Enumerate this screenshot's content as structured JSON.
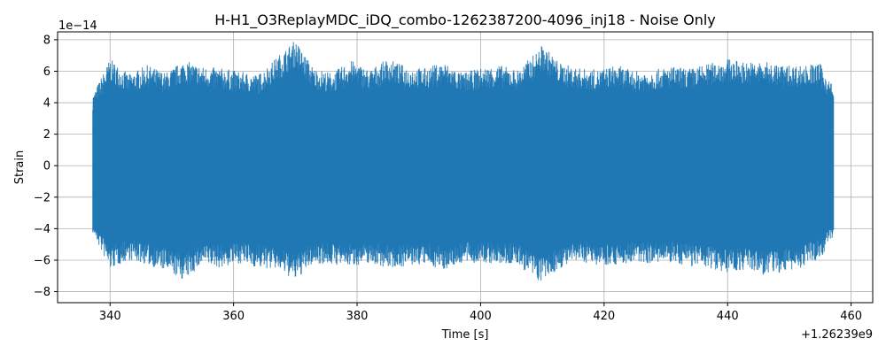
{
  "chart_data": {
    "type": "line",
    "title": "H-H1_O3ReplayMDC_iDQ_combo-1262387200-4096_inj18 - Noise Only",
    "xlabel": "Time [s]",
    "ylabel": "Strain",
    "x_offset_label": "+1.26239e9",
    "y_scale_label": "1e−14",
    "xlim": [
      331.5,
      463.5
    ],
    "ylim": [
      -8.7,
      8.5
    ],
    "x_ticks": [
      340,
      360,
      380,
      400,
      420,
      440,
      460
    ],
    "x_tick_labels": [
      "340",
      "360",
      "380",
      "400",
      "420",
      "440",
      "460"
    ],
    "y_ticks": [
      -8,
      -6,
      -4,
      -2,
      0,
      2,
      4,
      6,
      8
    ],
    "y_tick_labels": [
      "−8",
      "−6",
      "−4",
      "−2",
      "0",
      "2",
      "4",
      "6",
      "8"
    ],
    "grid": true,
    "series": [
      {
        "color": "#1f77b4",
        "x_range": [
          337.2,
          457.2
        ],
        "envelope_x": [
          337.2,
          340,
          343,
          346,
          349,
          352,
          355,
          358,
          361,
          364,
          367,
          370,
          373,
          376,
          379,
          382,
          385,
          388,
          391,
          394,
          397,
          400,
          403,
          406,
          409,
          410,
          413,
          416,
          419,
          422,
          425,
          428,
          431,
          434,
          437,
          440,
          443,
          446,
          449,
          452,
          455,
          457.2
        ],
        "envelope_upper": [
          4.5,
          6.8,
          5.8,
          6.4,
          5.9,
          6.7,
          6.3,
          6.2,
          6.0,
          5.8,
          6.9,
          8.0,
          6.2,
          5.9,
          6.7,
          6.1,
          6.8,
          6.3,
          6.2,
          6.6,
          5.9,
          6.2,
          6.4,
          6.1,
          7.2,
          7.7,
          6.5,
          6.2,
          6.1,
          6.4,
          6.0,
          6.1,
          6.3,
          6.2,
          6.5,
          6.8,
          6.6,
          6.6,
          6.4,
          6.4,
          6.5,
          5.0
        ],
        "envelope_lower": [
          -4.3,
          -6.6,
          -6.0,
          -6.3,
          -6.7,
          -7.3,
          -6.3,
          -6.5,
          -6.2,
          -6.5,
          -6.6,
          -7.3,
          -6.2,
          -6.3,
          -6.4,
          -6.2,
          -6.5,
          -6.4,
          -6.3,
          -6.6,
          -6.2,
          -6.2,
          -6.3,
          -6.3,
          -7.3,
          -7.4,
          -6.5,
          -6.1,
          -6.3,
          -6.3,
          -6.2,
          -6.2,
          -6.2,
          -6.4,
          -6.5,
          -6.8,
          -6.6,
          -7.0,
          -6.8,
          -6.5,
          -5.9,
          -4.5
        ]
      }
    ]
  }
}
